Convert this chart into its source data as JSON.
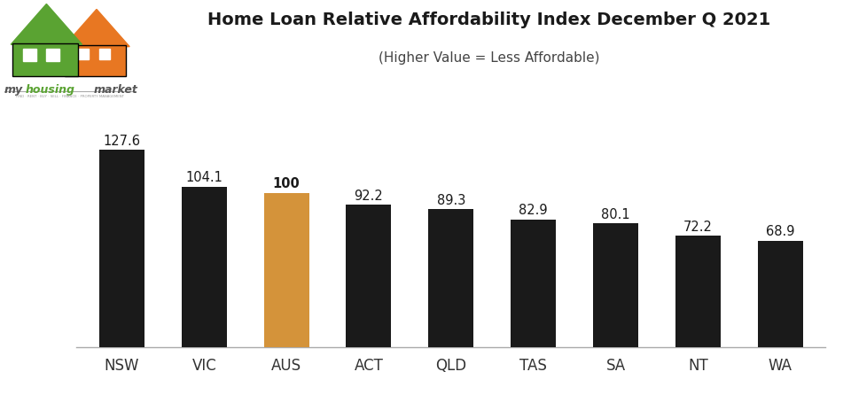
{
  "categories": [
    "NSW",
    "VIC",
    "AUS",
    "ACT",
    "QLD",
    "TAS",
    "SA",
    "NT",
    "WA"
  ],
  "values": [
    127.6,
    104.1,
    100,
    92.2,
    89.3,
    82.9,
    80.1,
    72.2,
    68.9
  ],
  "bar_colors": [
    "#1a1a1a",
    "#1a1a1a",
    "#d4933a",
    "#1a1a1a",
    "#1a1a1a",
    "#1a1a1a",
    "#1a1a1a",
    "#1a1a1a",
    "#1a1a1a"
  ],
  "title": "Home Loan Relative Affordability Index December Q 2021",
  "subtitle": "(Higher Value = Less Affordable)",
  "title_fontsize": 14,
  "subtitle_fontsize": 11,
  "label_fontsize": 10.5,
  "xlabel_fontsize": 12,
  "ylim": [
    0,
    148
  ],
  "background_color": "#ffffff",
  "value_label_bold_index": 2,
  "logo_text_my": "my",
  "logo_text_housing": "housing",
  "logo_text_market": "market"
}
